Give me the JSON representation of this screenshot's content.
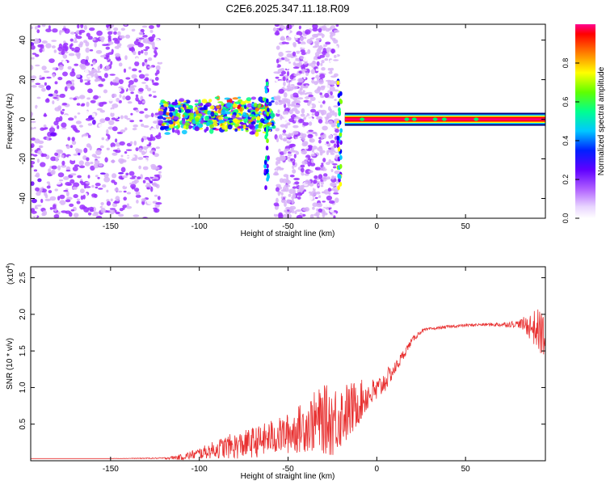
{
  "figure_title": "C2E6.2025.347.11.18.R09",
  "chart_data": [
    {
      "type": "heatmap",
      "title": "C2E6.2025.347.11.18.R09",
      "xlabel": "Height of straight line (km)",
      "ylabel": "Frequency (Hz)",
      "xlim": [
        -195,
        95
      ],
      "ylim": [
        -50,
        48
      ],
      "x_ticks": [
        -150,
        -100,
        -50,
        0,
        50
      ],
      "x_tick_labels": [
        "-150",
        "-100",
        "-50",
        "0",
        "50"
      ],
      "y_ticks": [
        -40,
        -20,
        0,
        20,
        40
      ],
      "y_tick_labels": [
        "-40",
        "-20",
        "0",
        "20",
        "40"
      ],
      "colorbar": {
        "label": "Normalized spectral amplitude",
        "range": [
          0,
          1
        ],
        "ticks": [
          0.0,
          0.2,
          0.4,
          0.6,
          0.8
        ],
        "tick_labels": [
          "0.0",
          "0.2",
          "0.4",
          "0.6",
          "0.8"
        ],
        "colormap": [
          "#ffffff",
          "#d8b4f8",
          "#9b30ff",
          "#6a00ff",
          "#0000ff",
          "#00c8ff",
          "#00ff80",
          "#80ff00",
          "#ffff00",
          "#ff8000",
          "#ff0000",
          "#ff00a0"
        ]
      },
      "regions": [
        {
          "name": "noise",
          "x": [
            -195,
            -122
          ],
          "f": [
            -50,
            48
          ],
          "amplitude": 0.15
        },
        {
          "name": "signal band",
          "x": [
            -122,
            -58
          ],
          "f": [
            -6,
            10
          ],
          "amplitude": 0.45
        },
        {
          "name": "noise",
          "x": [
            -57,
            -22
          ],
          "f": [
            -50,
            48
          ],
          "amplitude": 0.12
        },
        {
          "name": "carrier",
          "x": [
            -18,
            95
          ],
          "f": [
            -1.5,
            1.5
          ],
          "amplitude": 1.0
        }
      ]
    },
    {
      "type": "line",
      "xlabel": "Height of straight line (km)",
      "ylabel": "SNR (10 * v/v)",
      "y_scale_label": "(x10",
      "y_scale_exponent": "4",
      "y_scale": 10000,
      "xlim": [
        -195,
        95
      ],
      "ylim": [
        0,
        26500
      ],
      "x_ticks": [
        -150,
        -100,
        -50,
        0,
        50
      ],
      "x_tick_labels": [
        "-150",
        "-100",
        "-50",
        "0",
        "50"
      ],
      "y_ticks": [
        5000,
        10000,
        15000,
        20000,
        25000
      ],
      "y_tick_labels": [
        "0.5",
        "1.0",
        "1.5",
        "2.0",
        "2.5"
      ],
      "series": [
        {
          "name": "SNR",
          "color": "#e83030",
          "x": [
            -195,
            -150,
            -120,
            -110,
            -100,
            -95,
            -90,
            -85,
            -80,
            -75,
            -70,
            -65,
            -60,
            -55,
            -50,
            -45,
            -40,
            -35,
            -30,
            -25,
            -20,
            -15,
            -10,
            -5,
            0,
            5,
            10,
            15,
            20,
            25,
            30,
            40,
            50,
            60,
            70,
            80,
            85,
            90,
            95
          ],
          "y": [
            300,
            300,
            350,
            500,
            1000,
            1300,
            1600,
            1900,
            2000,
            2200,
            2500,
            2700,
            3200,
            3400,
            3700,
            4200,
            4800,
            5300,
            5600,
            5500,
            6200,
            6800,
            8000,
            9000,
            9500,
            11000,
            12500,
            14500,
            16500,
            17700,
            18000,
            18300,
            18500,
            18600,
            18600,
            18700,
            18500,
            18000,
            17000
          ],
          "noise_amplitude": [
            0,
            0,
            100,
            400,
            800,
            1000,
            1300,
            1600,
            1800,
            1900,
            2100,
            2200,
            2400,
            2500,
            2800,
            3200,
            3600,
            4200,
            4700,
            5000,
            4500,
            4000,
            3000,
            2200,
            1800,
            1500,
            900,
            700,
            400,
            300,
            200,
            200,
            200,
            200,
            300,
            500,
            1500,
            2800,
            3500
          ]
        }
      ]
    }
  ]
}
